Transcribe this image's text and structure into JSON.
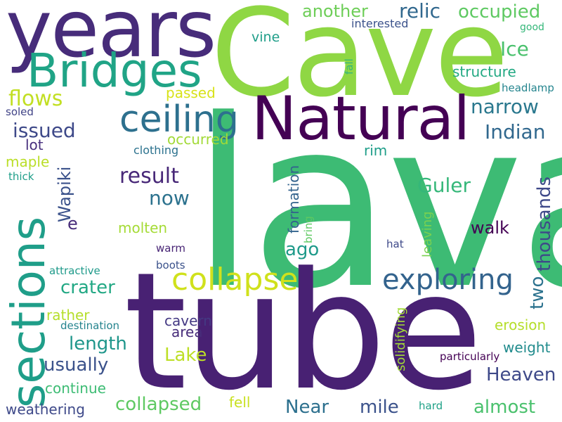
{
  "colors": {
    "background": "#ffffff",
    "deep_purple": "#440154",
    "indigo": "#482878",
    "slate_blue": "#3e4989",
    "steel_blue": "#31688e",
    "teal_blue": "#26828e",
    "teal": "#1f9e89",
    "sea_green": "#35b779",
    "green": "#6ece58",
    "lime": "#b5de2b",
    "yellow": "#d8e219"
  },
  "words": [
    {
      "id": "lava",
      "text": "lava",
      "color": "#3dbb74"
    },
    {
      "id": "tube",
      "text": "tube",
      "color": "#482173"
    },
    {
      "id": "cave",
      "text": "Cave",
      "color": "#8fd744"
    },
    {
      "id": "years",
      "text": "years",
      "color": "#472c7a"
    },
    {
      "id": "natural",
      "text": "Natural",
      "color": "#440154"
    },
    {
      "id": "bridges",
      "text": "Bridges",
      "color": "#20a486"
    },
    {
      "id": "sections",
      "text": "sections",
      "color": "#1f9e89"
    },
    {
      "id": "ceiling",
      "text": "ceiling",
      "color": "#2d708e"
    },
    {
      "id": "collapse",
      "text": "collapse",
      "color": "#d0e11c"
    },
    {
      "id": "exploring",
      "text": "exploring",
      "color": "#33638d"
    },
    {
      "id": "another",
      "text": "another",
      "color": "#6ece58"
    },
    {
      "id": "relic",
      "text": "relic",
      "color": "#31688e"
    },
    {
      "id": "occupied",
      "text": "occupied",
      "color": "#5ec962"
    },
    {
      "id": "ice",
      "text": "Ice",
      "color": "#4ac16d"
    },
    {
      "id": "vine",
      "text": "vine",
      "color": "#1f9e89"
    },
    {
      "id": "interested",
      "text": "interested",
      "color": "#3b528b"
    },
    {
      "id": "good",
      "text": "good",
      "color": "#35b779"
    },
    {
      "id": "fall",
      "text": "fall",
      "color": "#35b779"
    },
    {
      "id": "structure",
      "text": "structure",
      "color": "#23a983"
    },
    {
      "id": "headlamp",
      "text": "headlamp",
      "color": "#25858e"
    },
    {
      "id": "passed",
      "text": "passed",
      "color": "#d8e219"
    },
    {
      "id": "flows",
      "text": "flows",
      "color": "#c2df23"
    },
    {
      "id": "narrow",
      "text": "narrow",
      "color": "#2a788e"
    },
    {
      "id": "soled",
      "text": "soled",
      "color": "#414487"
    },
    {
      "id": "issued",
      "text": "issued",
      "color": "#3e4989"
    },
    {
      "id": "indian",
      "text": "Indian",
      "color": "#31688e"
    },
    {
      "id": "occurred",
      "text": "occurred",
      "color": "#a2da37"
    },
    {
      "id": "lot",
      "text": "lot",
      "color": "#472f7d"
    },
    {
      "id": "clothing",
      "text": "clothing",
      "color": "#2c728e"
    },
    {
      "id": "wapiki",
      "text": "Wapiki",
      "color": "#3b528b"
    },
    {
      "id": "maple",
      "text": "maple",
      "color": "#bade28"
    },
    {
      "id": "thick",
      "text": "thick",
      "color": "#1f9e89"
    },
    {
      "id": "result",
      "text": "result",
      "color": "#482878"
    },
    {
      "id": "rim",
      "text": "rim",
      "color": "#1f9e89"
    },
    {
      "id": "thousands",
      "text": "thousands",
      "color": "#3e4989"
    },
    {
      "id": "guler",
      "text": "Guler",
      "color": "#35b779"
    },
    {
      "id": "now",
      "text": "now",
      "color": "#2c728e"
    },
    {
      "id": "formation",
      "text": "formation",
      "color": "#33638d"
    },
    {
      "id": "bring",
      "text": "bring",
      "color": "#5ec962"
    },
    {
      "id": "leaving",
      "text": "leaving",
      "color": "#7ad151"
    },
    {
      "id": "e",
      "text": "e",
      "color": "#472c7a"
    },
    {
      "id": "molten",
      "text": "molten",
      "color": "#a5db36"
    },
    {
      "id": "walk",
      "text": "walk",
      "color": "#440154"
    },
    {
      "id": "ago",
      "text": "ago",
      "color": "#1f9a8a"
    },
    {
      "id": "warm",
      "text": "warm",
      "color": "#482575"
    },
    {
      "id": "hat",
      "text": "hat",
      "color": "#3e4989"
    },
    {
      "id": "attractive",
      "text": "attractive",
      "color": "#1f9a8a"
    },
    {
      "id": "boots",
      "text": "boots",
      "color": "#3b528b"
    },
    {
      "id": "crater",
      "text": "crater",
      "color": "#22a884"
    },
    {
      "id": "two",
      "text": "two",
      "color": "#2c728e"
    },
    {
      "id": "solidifying",
      "text": "solidifying",
      "color": "#a2da37"
    },
    {
      "id": "rather",
      "text": "rather",
      "color": "#b5de2b"
    },
    {
      "id": "destination",
      "text": "destination",
      "color": "#25848e"
    },
    {
      "id": "cavern",
      "text": "cavern",
      "color": "#443983"
    },
    {
      "id": "area",
      "text": "area",
      "color": "#472c7a"
    },
    {
      "id": "erosion",
      "text": "erosion",
      "color": "#b5de2b"
    },
    {
      "id": "length",
      "text": "length",
      "color": "#1f968b"
    },
    {
      "id": "weight",
      "text": "weight",
      "color": "#228c8d"
    },
    {
      "id": "lake",
      "text": "Lake",
      "color": "#bddf26"
    },
    {
      "id": "usually",
      "text": "usually",
      "color": "#3b528b"
    },
    {
      "id": "particularly",
      "text": "particularly",
      "color": "#440154"
    },
    {
      "id": "heaven",
      "text": "Heaven",
      "color": "#3e4989"
    },
    {
      "id": "continue",
      "text": "continue",
      "color": "#3dbc74"
    },
    {
      "id": "collapsed",
      "text": "collapsed",
      "color": "#5ec962"
    },
    {
      "id": "fell",
      "text": "fell",
      "color": "#c8e020"
    },
    {
      "id": "near",
      "text": "Near",
      "color": "#2d708e"
    },
    {
      "id": "mile",
      "text": "mile",
      "color": "#3b528b"
    },
    {
      "id": "almost",
      "text": "almost",
      "color": "#4ac16d"
    },
    {
      "id": "hard",
      "text": "hard",
      "color": "#1fa187"
    },
    {
      "id": "weathering",
      "text": "weathering",
      "color": "#3e4989"
    }
  ]
}
